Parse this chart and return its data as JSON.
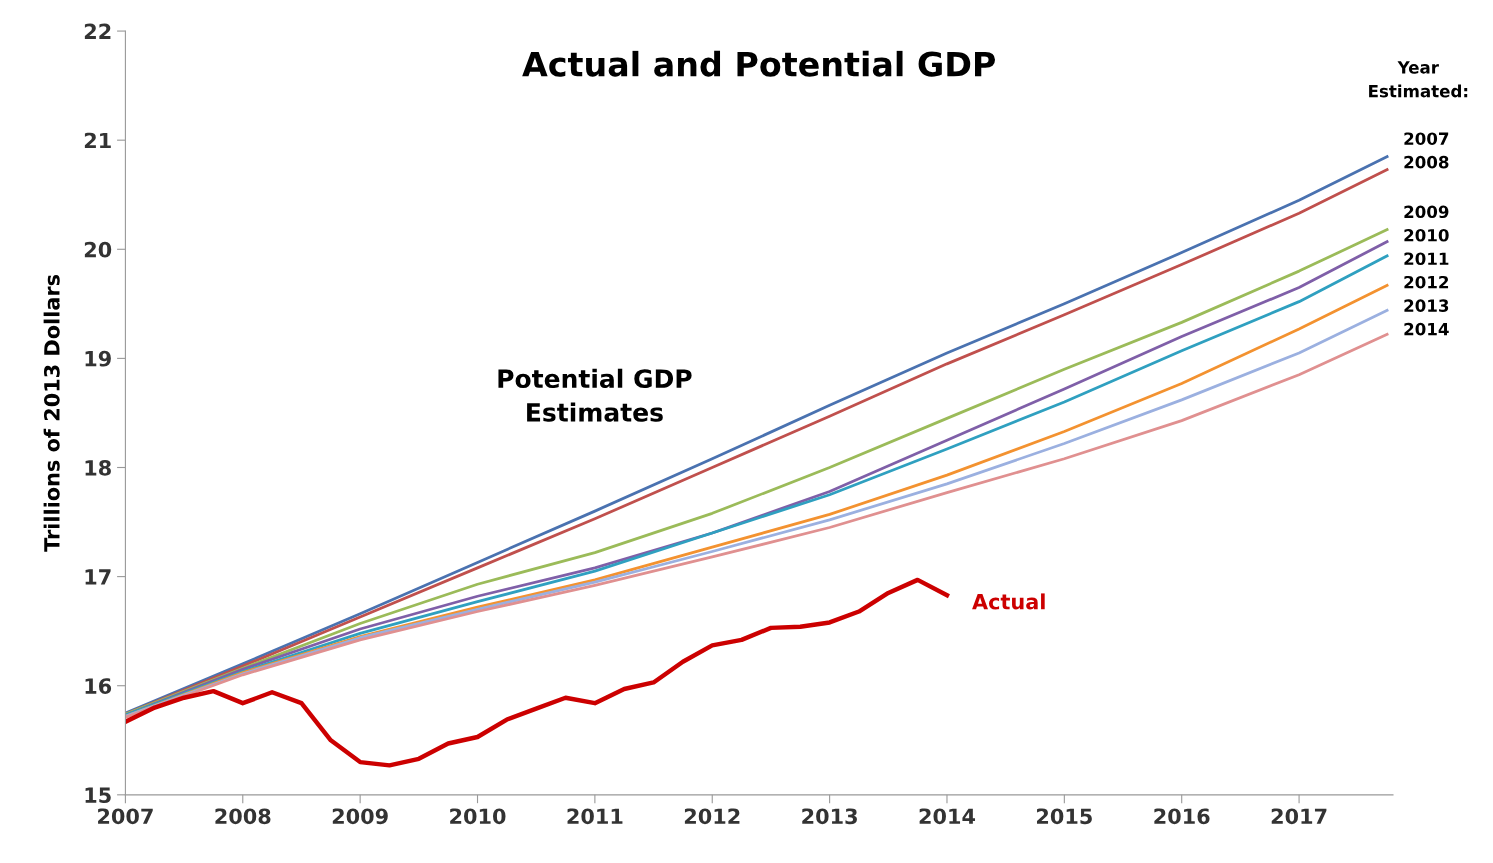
{
  "chart_data": {
    "type": "line",
    "title": "Actual and Potential GDP",
    "ylabel": "Trillions of 2013 Dollars",
    "legend_title": "Year\nEstimated:",
    "annotations": [
      "Potential GDP\nEstimates"
    ],
    "xlim": [
      2007,
      2017.8
    ],
    "xticks": [
      2007,
      2008,
      2009,
      2010,
      2011,
      2012,
      2013,
      2014,
      2015,
      2016,
      2017
    ],
    "ylim": [
      15,
      22
    ],
    "yticks": [
      15,
      16,
      17,
      18,
      19,
      20,
      21,
      22
    ],
    "grid": false,
    "marker": "none",
    "line_style": "solid",
    "series": [
      {
        "name": "2007",
        "color": "#4a72b0",
        "x": [
          2007,
          2008,
          2009,
          2010,
          2011,
          2012,
          2013,
          2014,
          2015,
          2016,
          2017,
          2017.75
        ],
        "values": [
          15.75,
          16.2,
          16.66,
          17.13,
          17.6,
          18.08,
          18.57,
          19.05,
          19.5,
          19.97,
          20.45,
          20.85
        ]
      },
      {
        "name": "2008",
        "color": "#c0504d",
        "x": [
          2007,
          2008,
          2009,
          2010,
          2011,
          2012,
          2013,
          2014,
          2015,
          2016,
          2017,
          2017.75
        ],
        "values": [
          15.74,
          16.18,
          16.63,
          17.08,
          17.53,
          18.0,
          18.47,
          18.95,
          19.4,
          19.86,
          20.33,
          20.73
        ]
      },
      {
        "name": "2009",
        "color": "#9bbb59",
        "x": [
          2007,
          2008,
          2009,
          2010,
          2011,
          2012,
          2013,
          2014,
          2015,
          2016,
          2017,
          2017.75
        ],
        "values": [
          15.74,
          16.16,
          16.57,
          16.93,
          17.22,
          17.58,
          18.0,
          18.45,
          18.9,
          19.33,
          19.8,
          20.18
        ]
      },
      {
        "name": "2010",
        "color": "#7f5fa8",
        "x": [
          2007,
          2008,
          2009,
          2010,
          2011,
          2012,
          2013,
          2014,
          2015,
          2016,
          2017,
          2017.75
        ],
        "values": [
          15.73,
          16.15,
          16.52,
          16.82,
          17.08,
          17.4,
          17.78,
          18.25,
          18.72,
          19.2,
          19.65,
          20.07
        ]
      },
      {
        "name": "2011",
        "color": "#2fa0c0",
        "x": [
          2007,
          2008,
          2009,
          2010,
          2011,
          2012,
          2013,
          2014,
          2015,
          2016,
          2017,
          2017.75
        ],
        "values": [
          15.73,
          16.13,
          16.48,
          16.77,
          17.05,
          17.4,
          17.75,
          18.17,
          18.6,
          19.07,
          19.52,
          19.94
        ]
      },
      {
        "name": "2012",
        "color": "#f39230",
        "x": [
          2007,
          2008,
          2009,
          2010,
          2011,
          2012,
          2013,
          2014,
          2015,
          2016,
          2017,
          2017.75
        ],
        "values": [
          15.72,
          16.12,
          16.45,
          16.72,
          16.97,
          17.27,
          17.57,
          17.93,
          18.33,
          18.77,
          19.27,
          19.67
        ]
      },
      {
        "name": "2013",
        "color": "#9bb0e0",
        "x": [
          2007,
          2008,
          2009,
          2010,
          2011,
          2012,
          2013,
          2014,
          2015,
          2016,
          2017,
          2017.75
        ],
        "values": [
          15.72,
          16.11,
          16.44,
          16.7,
          16.95,
          17.23,
          17.52,
          17.85,
          18.22,
          18.62,
          19.05,
          19.44
        ]
      },
      {
        "name": "2014",
        "color": "#e09090",
        "x": [
          2007,
          2008,
          2009,
          2010,
          2011,
          2012,
          2013,
          2014,
          2015,
          2016,
          2017,
          2017.75
        ],
        "values": [
          15.71,
          16.1,
          16.42,
          16.68,
          16.92,
          17.18,
          17.45,
          17.77,
          18.08,
          18.43,
          18.85,
          19.22
        ]
      },
      {
        "name": "Actual",
        "color": "#cc0000",
        "x": [
          2007,
          2007.25,
          2007.5,
          2007.75,
          2008,
          2008.25,
          2008.5,
          2008.75,
          2009,
          2009.25,
          2009.5,
          2009.75,
          2010,
          2010.25,
          2010.5,
          2010.75,
          2011,
          2011.25,
          2011.5,
          2011.75,
          2012,
          2012.25,
          2012.5,
          2012.75,
          2013,
          2013.25,
          2013.5,
          2013.75,
          2014
        ],
        "values": [
          15.67,
          15.8,
          15.89,
          15.95,
          15.84,
          15.94,
          15.84,
          15.5,
          15.3,
          15.27,
          15.33,
          15.47,
          15.53,
          15.69,
          15.79,
          15.89,
          15.84,
          15.97,
          16.03,
          16.22,
          16.37,
          16.42,
          16.53,
          16.54,
          16.58,
          16.68,
          16.85,
          16.97,
          16.83
        ]
      }
    ]
  }
}
